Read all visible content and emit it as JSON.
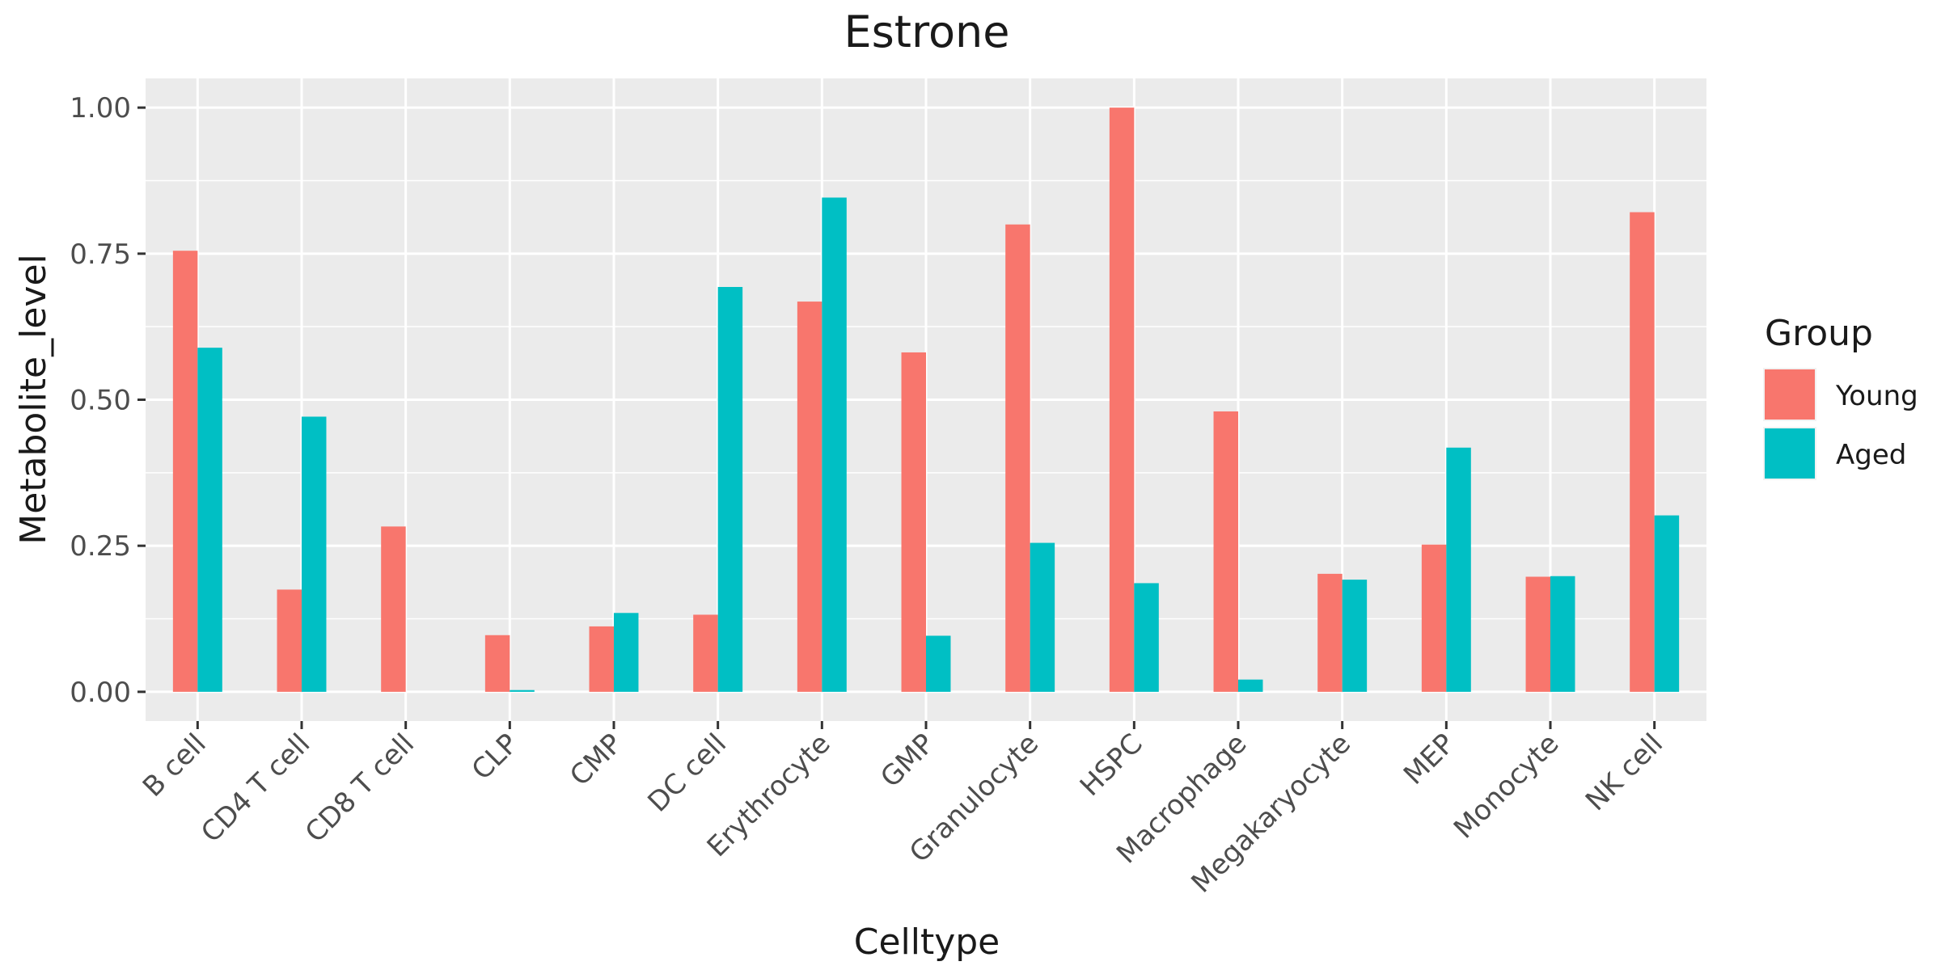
{
  "chart_data": {
    "type": "bar",
    "title": "Estrone",
    "xlabel": "Celltype",
    "ylabel": "Metabolite_level",
    "ylim": [
      -0.05,
      1.05
    ],
    "yticks": [
      0.0,
      0.25,
      0.5,
      0.75,
      1.0
    ],
    "ytick_labels": [
      "0.00",
      "0.25",
      "0.50",
      "0.75",
      "1.00"
    ],
    "grid": true,
    "legend_position": "right",
    "legend_title": "Group",
    "categories": [
      "B cell",
      "CD4 T cell",
      "CD8 T cell",
      "CLP",
      "CMP",
      "DC cell",
      "Erythrocyte",
      "GMP",
      "Granulocyte",
      "HSPC",
      "Macrophage",
      "Megakaryocyte",
      "MEP",
      "Monocyte",
      "NK cell"
    ],
    "series": [
      {
        "name": "Young",
        "color": "#F8766D",
        "values": [
          0.755,
          0.175,
          0.283,
          0.097,
          0.112,
          0.132,
          0.668,
          0.581,
          0.8,
          1.0,
          0.48,
          0.202,
          0.252,
          0.197,
          0.821
        ]
      },
      {
        "name": "Aged",
        "color": "#00BFC4",
        "values": [
          0.589,
          0.471,
          0.0,
          0.003,
          0.135,
          0.693,
          0.846,
          0.096,
          0.255,
          0.186,
          0.021,
          0.192,
          0.418,
          0.198,
          0.302
        ]
      }
    ]
  }
}
